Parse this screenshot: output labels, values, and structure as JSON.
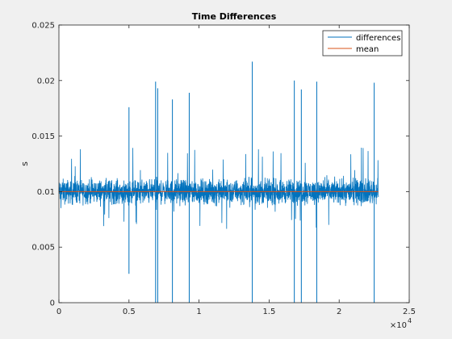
{
  "chart_data": {
    "type": "line",
    "title": "Time Differences",
    "xlabel": "",
    "ylabel": "s",
    "xlim": [
      0,
      25000
    ],
    "ylim": [
      0,
      0.025
    ],
    "x_ticks": [
      0,
      5000,
      10000,
      15000,
      20000,
      25000
    ],
    "x_tick_labels": [
      "0",
      "0.5",
      "1",
      "1.5",
      "2",
      "2.5"
    ],
    "x_exponent_label": "×10",
    "x_exponent_power": "4",
    "y_ticks": [
      0,
      0.005,
      0.01,
      0.015,
      0.02,
      0.025
    ],
    "y_tick_labels": [
      "0",
      "0.005",
      "0.01",
      "0.015",
      "0.02",
      "0.025"
    ],
    "grid": false,
    "legend_position": "top-right",
    "series": [
      {
        "name": "differences",
        "color": "#0072bd",
        "x_range": [
          1,
          22800
        ],
        "baseline": 0.01,
        "typical_band": [
          0.0088,
          0.0112
        ],
        "spikes": [
          {
            "x": 5000,
            "y": 0.0176
          },
          {
            "x": 6900,
            "y": 0.0199
          },
          {
            "x": 7050,
            "y": 0.0193
          },
          {
            "x": 8100,
            "y": 0.0183
          },
          {
            "x": 9300,
            "y": 0.0189
          },
          {
            "x": 13800,
            "y": 0.0217
          },
          {
            "x": 16800,
            "y": 0.02
          },
          {
            "x": 17300,
            "y": 0.0192
          },
          {
            "x": 18400,
            "y": 0.0199
          },
          {
            "x": 22500,
            "y": 0.0198
          }
        ],
        "dips": [
          {
            "x": 5000,
            "y": 0.0026
          },
          {
            "x": 6900,
            "y": 0.0
          },
          {
            "x": 7050,
            "y": 0.0
          },
          {
            "x": 8100,
            "y": 0.0
          },
          {
            "x": 9300,
            "y": 0.0
          },
          {
            "x": 13800,
            "y": 0.0
          },
          {
            "x": 16800,
            "y": 0.0
          },
          {
            "x": 17300,
            "y": 0.0
          },
          {
            "x": 18400,
            "y": 0.0
          },
          {
            "x": 22500,
            "y": 0.0
          }
        ]
      },
      {
        "name": "mean",
        "color": "#d95319",
        "x_range": [
          1,
          22800
        ],
        "value": 0.01
      }
    ]
  }
}
